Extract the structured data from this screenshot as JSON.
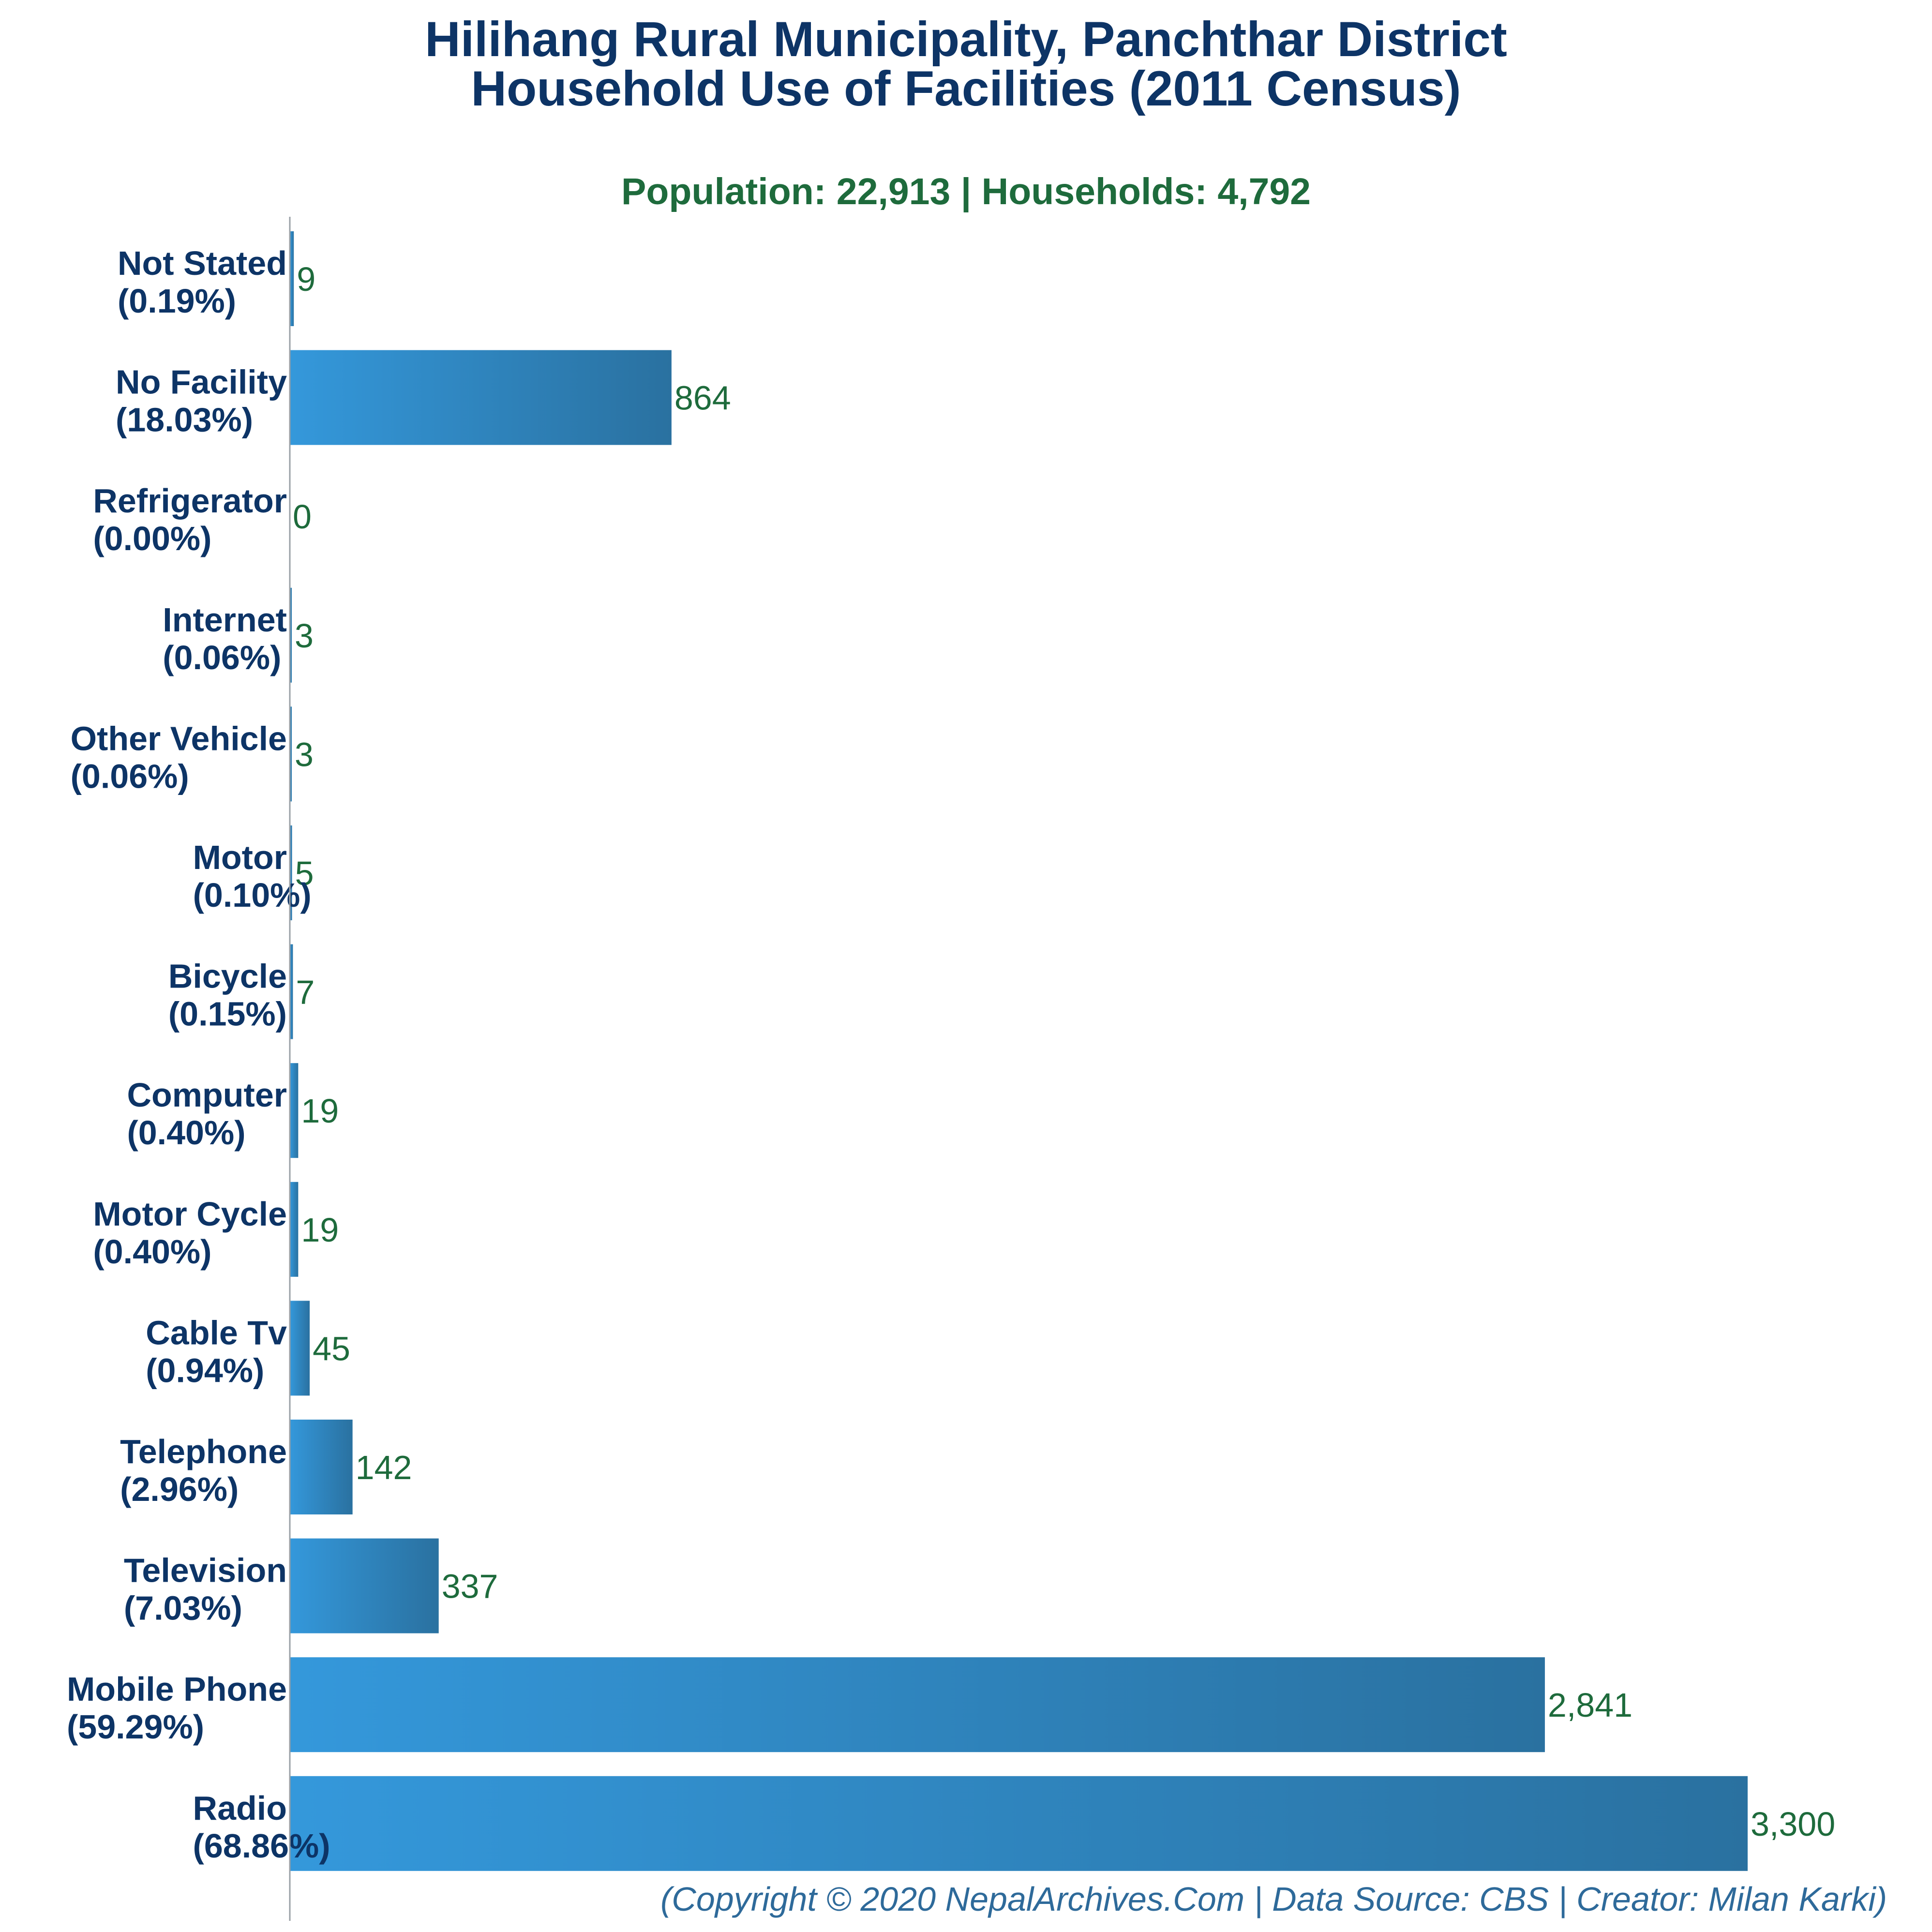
{
  "title_lines": [
    "Hilihang Rural Municipality, Panchthar District",
    "Household Use of Facilities (2011 Census)"
  ],
  "subtitle": "Population: 22,913 | Households: 4,792",
  "credit": "(Copyright © 2020 NepalArchives.Com | Data Source: CBS | Creator: Milan Karki)",
  "colors": {
    "title": "#0d3466",
    "subtitle": "#1e6b3c",
    "category_label": "#0d3466",
    "value_label": "#1e6b3c",
    "bar_light": "#3498db",
    "bar_dark": "#2a71a0",
    "credit": "#2e6a9a"
  },
  "chart_data": {
    "type": "bar",
    "orientation": "horizontal",
    "categories": [
      "Not Stated",
      "No Facility",
      "Refrigerator",
      "Internet",
      "Other Vehicle",
      "Motor",
      "Bicycle",
      "Computer",
      "Motor Cycle",
      "Cable Tv",
      "Telephone",
      "Television",
      "Mobile Phone",
      "Radio"
    ],
    "percent_labels": [
      "(0.19%)",
      "(18.03%)",
      "(0.00%)",
      "(0.06%)",
      "(0.06%)",
      "(0.10%)",
      "(0.15%)",
      "(0.40%)",
      "(0.40%)",
      "(0.94%)",
      "(2.96%)",
      "(7.03%)",
      "(59.29%)",
      "(68.86%)"
    ],
    "values": [
      9,
      864,
      0,
      3,
      3,
      5,
      7,
      19,
      19,
      45,
      142,
      337,
      2841,
      3300
    ],
    "value_labels": [
      "9",
      "864",
      "0",
      "3",
      "3",
      "5",
      "7",
      "19",
      "19",
      "45",
      "142",
      "337",
      "2,841",
      "3,300"
    ],
    "xlim": [
      0,
      3300
    ],
    "grid": false,
    "legend": "none"
  }
}
